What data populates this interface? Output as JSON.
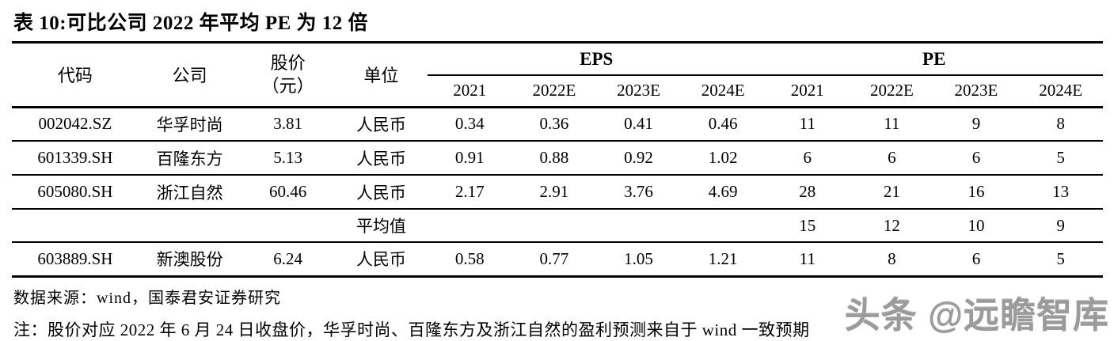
{
  "page": {
    "title": "表 10:可比公司 2022 年平均 PE 为 12 倍",
    "source": "数据来源：wind，国泰君安证券研究",
    "note": "注：股价对应 2022 年 6 月 24 日收盘价，华孚时尚、百隆东方及浙江自然的盈利预测来自于 wind 一致预期",
    "watermark": "头条 @远瞻智库"
  },
  "table": {
    "headers": {
      "code": "代码",
      "company": "公司",
      "price_line1": "股价",
      "price_line2": "（元）",
      "unit": "单位",
      "eps_group": "EPS",
      "pe_group": "PE",
      "eps_years": [
        "2021",
        "2022E",
        "2023E",
        "2024E"
      ],
      "pe_years": [
        "2021",
        "2022E",
        "2023E",
        "2024E"
      ]
    },
    "rows": [
      {
        "code": "002042.SZ",
        "company": "华孚时尚",
        "price": "3.81",
        "unit": "人民币",
        "eps": [
          "0.34",
          "0.36",
          "0.41",
          "0.46"
        ],
        "pe": [
          "11",
          "11",
          "9",
          "8"
        ]
      },
      {
        "code": "601339.SH",
        "company": "百隆东方",
        "price": "5.13",
        "unit": "人民币",
        "eps": [
          "0.91",
          "0.88",
          "0.92",
          "1.02"
        ],
        "pe": [
          "6",
          "6",
          "6",
          "5"
        ]
      },
      {
        "code": "605080.SH",
        "company": "浙江自然",
        "price": "60.46",
        "unit": "人民币",
        "eps": [
          "2.17",
          "2.91",
          "3.76",
          "4.69"
        ],
        "pe": [
          "28",
          "21",
          "16",
          "13"
        ]
      }
    ],
    "average_row": {
      "label": "平均值",
      "pe": [
        "15",
        "12",
        "10",
        "9"
      ]
    },
    "last_row": {
      "code": "603889.SH",
      "company": "新澳股份",
      "price": "6.24",
      "unit": "人民币",
      "eps": [
        "0.58",
        "0.77",
        "1.05",
        "1.21"
      ],
      "pe": [
        "11",
        "8",
        "6",
        "5"
      ]
    }
  }
}
